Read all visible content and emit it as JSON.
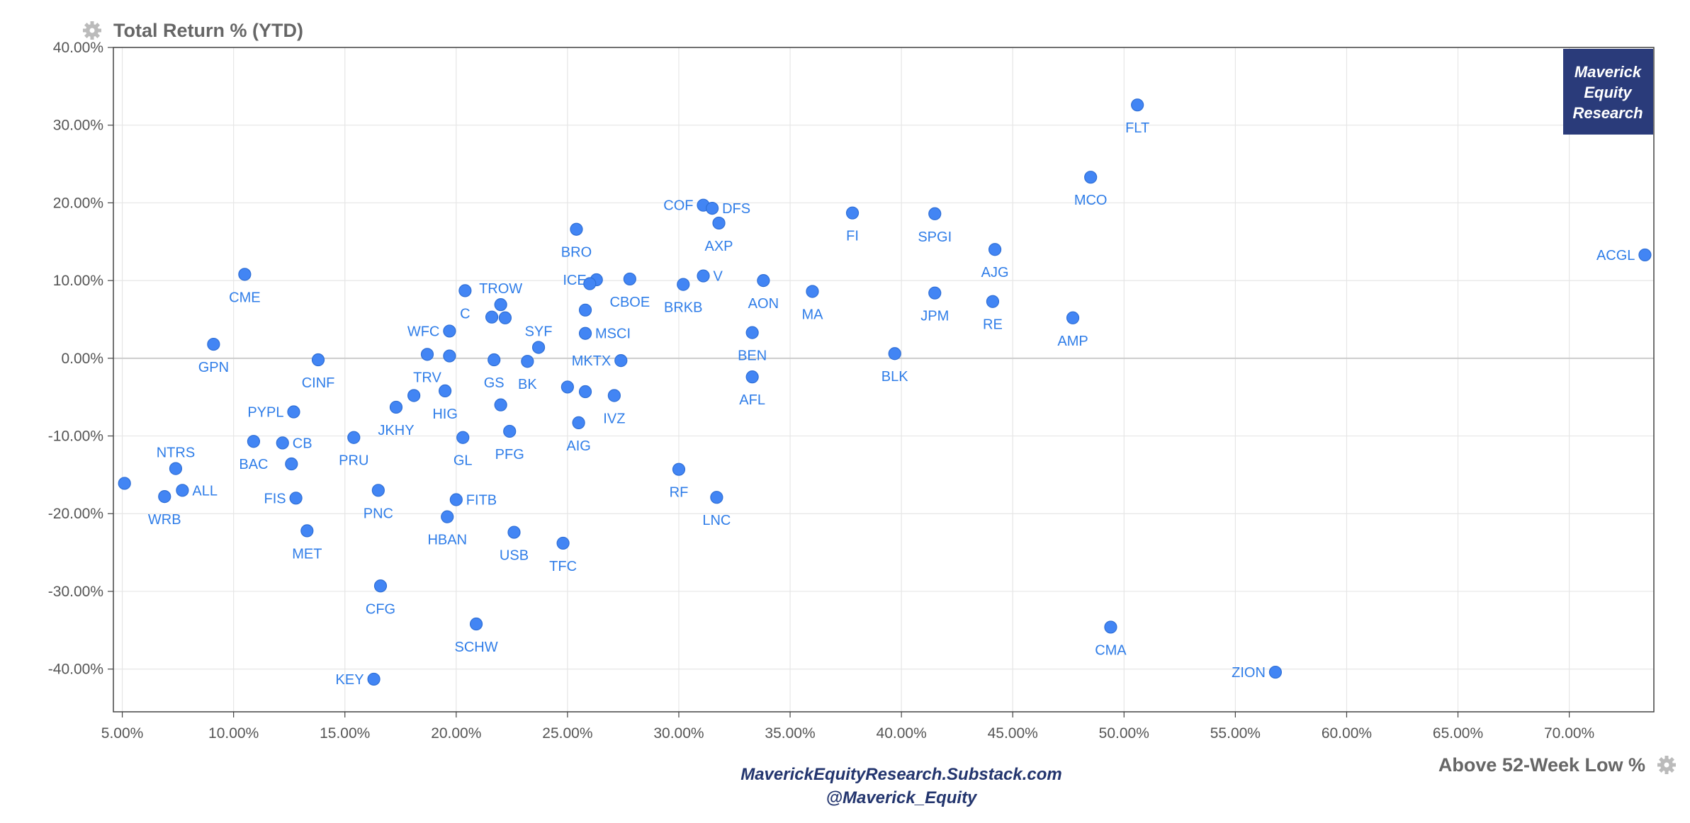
{
  "chart_data": {
    "type": "scatter",
    "ylabel": "Total Return % (YTD)",
    "xlabel": "Above 52-Week Low %",
    "xlim": [
      4.6,
      73.8
    ],
    "ylim": [
      -45.5,
      40.0
    ],
    "x_ticks": [
      5,
      10,
      15,
      20,
      25,
      30,
      35,
      40,
      45,
      50,
      55,
      60,
      65,
      70
    ],
    "x_tick_labels": [
      "5.00%",
      "10.00%",
      "15.00%",
      "20.00%",
      "25.00%",
      "30.00%",
      "35.00%",
      "40.00%",
      "45.00%",
      "50.00%",
      "55.00%",
      "60.00%",
      "65.00%",
      "70.00%"
    ],
    "y_ticks": [
      40,
      30,
      20,
      10,
      0,
      -10,
      -20,
      -30,
      -40
    ],
    "y_tick_labels": [
      "40.00%",
      "30.00%",
      "20.00%",
      "10.00%",
      "0.00%",
      "-10.00%",
      "-20.00%",
      "-30.00%",
      "-40.00%"
    ],
    "grid": true,
    "marker_color": "#4285f4",
    "label_color": "#2f7de8",
    "points": [
      {
        "label": "FLT",
        "x": 50.6,
        "y": 32.6,
        "pos": "below"
      },
      {
        "label": "MCO",
        "x": 48.5,
        "y": 23.3,
        "pos": "below"
      },
      {
        "label": "ACGL",
        "x": 73.4,
        "y": 13.3,
        "pos": "left"
      },
      {
        "label": "AJG",
        "x": 44.2,
        "y": 14.0,
        "pos": "below"
      },
      {
        "label": "SPGI",
        "x": 41.5,
        "y": 18.6,
        "pos": "below"
      },
      {
        "label": "FI",
        "x": 37.8,
        "y": 18.7,
        "pos": "below"
      },
      {
        "label": "JPM",
        "x": 41.5,
        "y": 8.4,
        "pos": "below"
      },
      {
        "label": "RE",
        "x": 44.1,
        "y": 7.3,
        "pos": "below"
      },
      {
        "label": "AMP",
        "x": 47.7,
        "y": 5.2,
        "pos": "below"
      },
      {
        "label": "BLK",
        "x": 39.7,
        "y": 0.6,
        "pos": "below"
      },
      {
        "label": "MA",
        "x": 36.0,
        "y": 8.6,
        "pos": "below"
      },
      {
        "label": "AON",
        "x": 33.8,
        "y": 10.0,
        "pos": "below"
      },
      {
        "label": "COF",
        "x": 31.1,
        "y": 19.7,
        "pos": "left"
      },
      {
        "label": "DFS",
        "x": 31.5,
        "y": 19.3,
        "pos": "right"
      },
      {
        "label": "AXP",
        "x": 31.8,
        "y": 17.4,
        "pos": "below"
      },
      {
        "label": "V",
        "x": 31.1,
        "y": 10.6,
        "pos": "right"
      },
      {
        "label": "BRKB",
        "x": 30.2,
        "y": 9.5,
        "pos": "below"
      },
      {
        "label": "BEN",
        "x": 33.3,
        "y": 3.3,
        "pos": "below"
      },
      {
        "label": "AFL",
        "x": 33.3,
        "y": -2.4,
        "pos": "below"
      },
      {
        "label": "RF",
        "x": 30.0,
        "y": -14.3,
        "pos": "below"
      },
      {
        "label": "LNC",
        "x": 31.7,
        "y": -17.9,
        "pos": "below"
      },
      {
        "label": "BRO",
        "x": 25.4,
        "y": 16.6,
        "pos": "below"
      },
      {
        "label": "CBOE",
        "x": 27.8,
        "y": 10.2,
        "pos": "below"
      },
      {
        "label": "ICE",
        "x": 26.3,
        "y": 10.1,
        "pos": "left"
      },
      {
        "label": "ICE2",
        "x": 26.0,
        "y": 9.6,
        "pos": "none"
      },
      {
        "label": "MSCI",
        "x": 25.8,
        "y": 3.2,
        "pos": "right"
      },
      {
        "label": "MSCI2",
        "x": 25.8,
        "y": 6.2,
        "pos": "none"
      },
      {
        "label": "MKTX",
        "x": 27.4,
        "y": -0.3,
        "pos": "left"
      },
      {
        "label": "IVZ",
        "x": 27.1,
        "y": -4.8,
        "pos": "below"
      },
      {
        "label": "IVZ2",
        "x": 25.8,
        "y": -4.3,
        "pos": "none"
      },
      {
        "label": "IVZ3",
        "x": 25.0,
        "y": -3.7,
        "pos": "none"
      },
      {
        "label": "AIG",
        "x": 25.5,
        "y": -8.3,
        "pos": "below"
      },
      {
        "label": "TFC",
        "x": 24.8,
        "y": -23.8,
        "pos": "below"
      },
      {
        "label": "USB",
        "x": 22.6,
        "y": -22.4,
        "pos": "below"
      },
      {
        "label": "SYF",
        "x": 23.7,
        "y": 1.4,
        "pos": "above"
      },
      {
        "label": "BK",
        "x": 23.2,
        "y": -0.4,
        "pos": "below"
      },
      {
        "label": "GS",
        "x": 21.7,
        "y": -0.2,
        "pos": "below"
      },
      {
        "label": "PFG",
        "x": 22.4,
        "y": -9.4,
        "pos": "below"
      },
      {
        "label": "PFG2",
        "x": 22.0,
        "y": -6.0,
        "pos": "none"
      },
      {
        "label": "TROW",
        "x": 22.0,
        "y": 6.9,
        "pos": "above"
      },
      {
        "label": "TROW2",
        "x": 22.2,
        "y": 5.2,
        "pos": "none"
      },
      {
        "label": "TROW3",
        "x": 21.6,
        "y": 5.3,
        "pos": "none"
      },
      {
        "label": "C",
        "x": 20.4,
        "y": 8.7,
        "pos": "below"
      },
      {
        "label": "WFC",
        "x": 19.7,
        "y": 3.5,
        "pos": "left"
      },
      {
        "label": "WFC2",
        "x": 19.7,
        "y": 0.3,
        "pos": "none"
      },
      {
        "label": "TRV",
        "x": 18.7,
        "y": 0.5,
        "pos": "below"
      },
      {
        "label": "HIG",
        "x": 19.5,
        "y": -4.2,
        "pos": "below"
      },
      {
        "label": "JKHY",
        "x": 17.3,
        "y": -6.3,
        "pos": "below"
      },
      {
        "label": "JKHY2",
        "x": 18.1,
        "y": -4.8,
        "pos": "none"
      },
      {
        "label": "GL",
        "x": 20.3,
        "y": -10.2,
        "pos": "below"
      },
      {
        "label": "FITB",
        "x": 20.0,
        "y": -18.2,
        "pos": "right"
      },
      {
        "label": "HBAN",
        "x": 19.6,
        "y": -20.4,
        "pos": "below"
      },
      {
        "label": "SCHW",
        "x": 20.9,
        "y": -34.2,
        "pos": "below"
      },
      {
        "label": "PRU",
        "x": 15.4,
        "y": -10.2,
        "pos": "below"
      },
      {
        "label": "PNC",
        "x": 16.5,
        "y": -17.0,
        "pos": "below"
      },
      {
        "label": "CFG",
        "x": 16.6,
        "y": -29.3,
        "pos": "below"
      },
      {
        "label": "KEY",
        "x": 16.3,
        "y": -41.3,
        "pos": "left"
      },
      {
        "label": "CINF",
        "x": 13.8,
        "y": -0.2,
        "pos": "below"
      },
      {
        "label": "PYPL",
        "x": 12.7,
        "y": -6.9,
        "pos": "left"
      },
      {
        "label": "CB",
        "x": 12.2,
        "y": -10.9,
        "pos": "right"
      },
      {
        "label": "CB2",
        "x": 12.6,
        "y": -13.6,
        "pos": "none"
      },
      {
        "label": "FIS",
        "x": 12.8,
        "y": -18.0,
        "pos": "left"
      },
      {
        "label": "MET",
        "x": 13.3,
        "y": -22.2,
        "pos": "below"
      },
      {
        "label": "BAC",
        "x": 10.9,
        "y": -10.7,
        "pos": "below"
      },
      {
        "label": "GPN",
        "x": 9.1,
        "y": 1.8,
        "pos": "below"
      },
      {
        "label": "CME",
        "x": 10.5,
        "y": 10.8,
        "pos": "below"
      },
      {
        "label": "NTRS",
        "x": 7.4,
        "y": -14.2,
        "pos": "above"
      },
      {
        "label": "ALL",
        "x": 7.7,
        "y": -17.0,
        "pos": "right"
      },
      {
        "label": "WRB",
        "x": 6.9,
        "y": -17.8,
        "pos": "below"
      },
      {
        "label": "WRB2",
        "x": 5.1,
        "y": -16.1,
        "pos": "none"
      },
      {
        "label": "ZION",
        "x": 56.8,
        "y": -40.4,
        "pos": "left"
      },
      {
        "label": "CMA",
        "x": 49.4,
        "y": -34.6,
        "pos": "below"
      }
    ]
  },
  "watermark": {
    "line1": "Maverick",
    "line2": "Equity",
    "line3": "Research",
    "bg_color": "#2a3b7a"
  },
  "footer": {
    "line1": "MaverickEquityResearch.Substack.com",
    "line2": "@Maverick_Equity"
  },
  "icons": {
    "top_left": "gear-icon",
    "bottom_right": "gear-icon"
  }
}
